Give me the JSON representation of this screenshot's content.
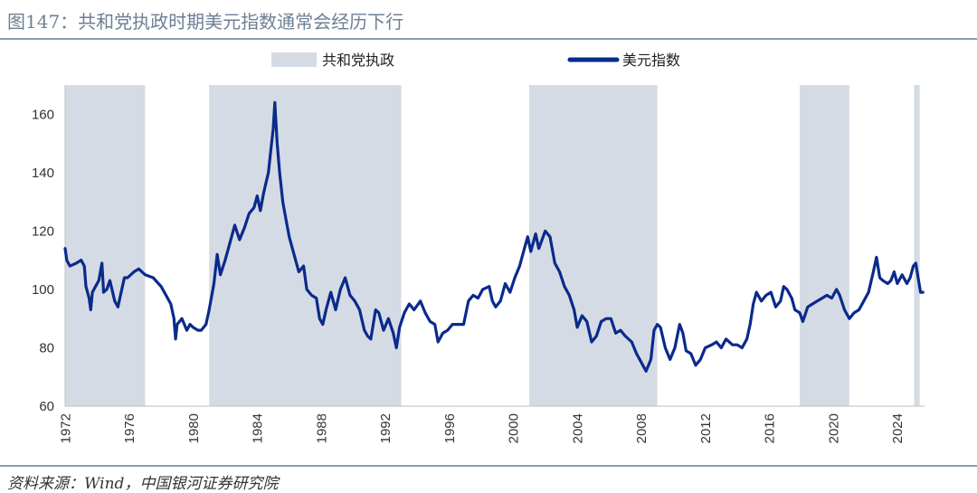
{
  "header": {
    "title": "图147：共和党执政时期美元指数通常会经历下行"
  },
  "footer": {
    "source": "资料来源：Wind，中国银河证券研究院"
  },
  "chart_data": {
    "type": "line",
    "title": "",
    "xlabel": "",
    "ylabel": "",
    "xlim": [
      1972,
      2025.7
    ],
    "ylim": [
      60,
      170
    ],
    "yticks": [
      60,
      80,
      100,
      120,
      140,
      160
    ],
    "xticks": [
      1972,
      1976,
      1980,
      1984,
      1988,
      1992,
      1996,
      2000,
      2004,
      2008,
      2012,
      2016,
      2020,
      2024
    ],
    "grid": false,
    "legend_position": "top",
    "colors": {
      "line": "#0a2a8c",
      "shade": "#d5dbe4",
      "axis": "#bfbfbf"
    },
    "shaded_periods": {
      "name": "共和党执政",
      "ranges": [
        [
          1972,
          1977
        ],
        [
          1981,
          1993
        ],
        [
          2001,
          2009
        ],
        [
          2017.9,
          2021
        ],
        [
          2025.05,
          2025.4
        ]
      ]
    },
    "series": [
      {
        "name": "美元指数",
        "points": [
          [
            1972.0,
            114
          ],
          [
            1972.1,
            110
          ],
          [
            1972.3,
            108
          ],
          [
            1972.7,
            109
          ],
          [
            1973.0,
            110
          ],
          [
            1973.2,
            108
          ],
          [
            1973.3,
            101
          ],
          [
            1973.5,
            97
          ],
          [
            1973.6,
            93
          ],
          [
            1973.7,
            99
          ],
          [
            1973.9,
            101
          ],
          [
            1974.1,
            103
          ],
          [
            1974.3,
            109
          ],
          [
            1974.4,
            99
          ],
          [
            1974.6,
            100
          ],
          [
            1974.8,
            103
          ],
          [
            1975.1,
            96
          ],
          [
            1975.3,
            94
          ],
          [
            1975.5,
            99
          ],
          [
            1975.7,
            104
          ],
          [
            1975.9,
            104
          ],
          [
            1976.3,
            106
          ],
          [
            1976.6,
            107
          ],
          [
            1977.0,
            105
          ],
          [
            1977.5,
            104
          ],
          [
            1978.0,
            101
          ],
          [
            1978.3,
            98
          ],
          [
            1978.6,
            95
          ],
          [
            1978.8,
            90
          ],
          [
            1978.9,
            83
          ],
          [
            1979.0,
            88
          ],
          [
            1979.3,
            90
          ],
          [
            1979.6,
            86
          ],
          [
            1979.8,
            88
          ],
          [
            1980.0,
            87
          ],
          [
            1980.3,
            86
          ],
          [
            1980.5,
            86
          ],
          [
            1980.8,
            88
          ],
          [
            1981.0,
            93
          ],
          [
            1981.3,
            102
          ],
          [
            1981.5,
            112
          ],
          [
            1981.7,
            105
          ],
          [
            1982.0,
            110
          ],
          [
            1982.3,
            116
          ],
          [
            1982.6,
            122
          ],
          [
            1982.9,
            117
          ],
          [
            1983.2,
            121
          ],
          [
            1983.5,
            126
          ],
          [
            1983.8,
            128
          ],
          [
            1984.0,
            132
          ],
          [
            1984.2,
            127
          ],
          [
            1984.4,
            133
          ],
          [
            1984.7,
            140
          ],
          [
            1984.9,
            150
          ],
          [
            1985.0,
            155
          ],
          [
            1985.1,
            164
          ],
          [
            1985.25,
            150
          ],
          [
            1985.4,
            140
          ],
          [
            1985.6,
            130
          ],
          [
            1985.8,
            124
          ],
          [
            1986.0,
            118
          ],
          [
            1986.3,
            112
          ],
          [
            1986.6,
            106
          ],
          [
            1986.9,
            108
          ],
          [
            1987.1,
            100
          ],
          [
            1987.4,
            98
          ],
          [
            1987.7,
            97
          ],
          [
            1987.9,
            90
          ],
          [
            1988.1,
            88
          ],
          [
            1988.3,
            93
          ],
          [
            1988.6,
            99
          ],
          [
            1988.9,
            93
          ],
          [
            1989.2,
            100
          ],
          [
            1989.5,
            104
          ],
          [
            1989.8,
            98
          ],
          [
            1990.1,
            96
          ],
          [
            1990.4,
            93
          ],
          [
            1990.7,
            86
          ],
          [
            1990.9,
            84
          ],
          [
            1991.1,
            83
          ],
          [
            1991.4,
            93
          ],
          [
            1991.6,
            92
          ],
          [
            1991.9,
            86
          ],
          [
            1992.2,
            90
          ],
          [
            1992.5,
            85
          ],
          [
            1992.7,
            80
          ],
          [
            1992.9,
            87
          ],
          [
            1993.2,
            92
          ],
          [
            1993.5,
            95
          ],
          [
            1993.8,
            93
          ],
          [
            1994.2,
            96
          ],
          [
            1994.5,
            92
          ],
          [
            1994.8,
            89
          ],
          [
            1995.1,
            88
          ],
          [
            1995.3,
            82
          ],
          [
            1995.6,
            85
          ],
          [
            1995.9,
            86
          ],
          [
            1996.2,
            88
          ],
          [
            1996.6,
            88
          ],
          [
            1996.9,
            88
          ],
          [
            1997.2,
            96
          ],
          [
            1997.5,
            98
          ],
          [
            1997.8,
            97
          ],
          [
            1998.1,
            100
          ],
          [
            1998.5,
            101
          ],
          [
            1998.7,
            96
          ],
          [
            1998.9,
            94
          ],
          [
            1999.2,
            96
          ],
          [
            1999.5,
            102
          ],
          [
            1999.8,
            99
          ],
          [
            2000.1,
            104
          ],
          [
            2000.4,
            108
          ],
          [
            2000.7,
            114
          ],
          [
            2000.9,
            118
          ],
          [
            2001.1,
            113
          ],
          [
            2001.4,
            119
          ],
          [
            2001.6,
            114
          ],
          [
            2001.8,
            117
          ],
          [
            2002.0,
            120
          ],
          [
            2002.3,
            118
          ],
          [
            2002.6,
            109
          ],
          [
            2002.9,
            106
          ],
          [
            2003.2,
            101
          ],
          [
            2003.5,
            98
          ],
          [
            2003.8,
            93
          ],
          [
            2004.0,
            87
          ],
          [
            2004.3,
            91
          ],
          [
            2004.6,
            89
          ],
          [
            2004.9,
            82
          ],
          [
            2005.2,
            84
          ],
          [
            2005.5,
            89
          ],
          [
            2005.8,
            90
          ],
          [
            2006.1,
            90
          ],
          [
            2006.4,
            85
          ],
          [
            2006.7,
            86
          ],
          [
            2007.0,
            84
          ],
          [
            2007.4,
            82
          ],
          [
            2007.7,
            78
          ],
          [
            2008.0,
            75
          ],
          [
            2008.3,
            72
          ],
          [
            2008.6,
            76
          ],
          [
            2008.8,
            86
          ],
          [
            2009.0,
            88
          ],
          [
            2009.2,
            87
          ],
          [
            2009.5,
            80
          ],
          [
            2009.8,
            76
          ],
          [
            2010.1,
            80
          ],
          [
            2010.4,
            88
          ],
          [
            2010.6,
            85
          ],
          [
            2010.8,
            79
          ],
          [
            2011.1,
            78
          ],
          [
            2011.4,
            74
          ],
          [
            2011.7,
            76
          ],
          [
            2012.0,
            80
          ],
          [
            2012.4,
            81
          ],
          [
            2012.7,
            82
          ],
          [
            2013.0,
            80
          ],
          [
            2013.3,
            83
          ],
          [
            2013.7,
            81
          ],
          [
            2014.0,
            81
          ],
          [
            2014.3,
            80
          ],
          [
            2014.6,
            83
          ],
          [
            2014.8,
            88
          ],
          [
            2015.0,
            95
          ],
          [
            2015.2,
            99
          ],
          [
            2015.5,
            96
          ],
          [
            2015.8,
            98
          ],
          [
            2016.1,
            99
          ],
          [
            2016.4,
            94
          ],
          [
            2016.7,
            96
          ],
          [
            2016.9,
            101
          ],
          [
            2017.1,
            100
          ],
          [
            2017.4,
            97
          ],
          [
            2017.6,
            93
          ],
          [
            2017.9,
            92
          ],
          [
            2018.1,
            89
          ],
          [
            2018.4,
            94
          ],
          [
            2018.7,
            95
          ],
          [
            2019.0,
            96
          ],
          [
            2019.3,
            97
          ],
          [
            2019.6,
            98
          ],
          [
            2019.9,
            97
          ],
          [
            2020.2,
            100
          ],
          [
            2020.4,
            98
          ],
          [
            2020.7,
            93
          ],
          [
            2021.0,
            90
          ],
          [
            2021.3,
            92
          ],
          [
            2021.6,
            93
          ],
          [
            2021.9,
            96
          ],
          [
            2022.2,
            99
          ],
          [
            2022.5,
            106
          ],
          [
            2022.7,
            111
          ],
          [
            2022.9,
            104
          ],
          [
            2023.1,
            103
          ],
          [
            2023.4,
            102
          ],
          [
            2023.6,
            103
          ],
          [
            2023.8,
            106
          ],
          [
            2024.0,
            102
          ],
          [
            2024.3,
            105
          ],
          [
            2024.6,
            102
          ],
          [
            2024.8,
            104
          ],
          [
            2025.0,
            108
          ],
          [
            2025.15,
            109
          ],
          [
            2025.3,
            104
          ],
          [
            2025.45,
            99
          ],
          [
            2025.6,
            99
          ]
        ]
      }
    ]
  }
}
